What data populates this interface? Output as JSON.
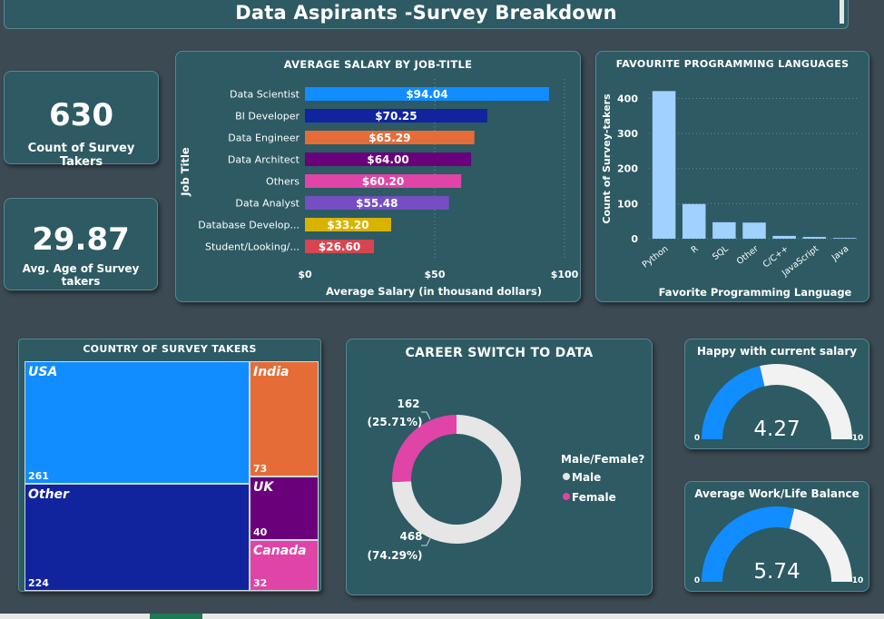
{
  "header": {
    "title": "Data Aspirants -Survey Breakdown"
  },
  "kpis": {
    "count": {
      "value": "630",
      "label": "Count of Survey Takers"
    },
    "age": {
      "value": "29.87",
      "label": "Avg. Age of Survey takers"
    }
  },
  "salary_chart": {
    "title": "AVERAGE SALARY BY JOB-TITLE",
    "xlabel": "Average Salary (in thousand dollars)",
    "ylabel": "Job Title",
    "ticks": [
      "$0",
      "$50",
      "$100"
    ]
  },
  "lang_chart": {
    "title": "FAVOURITE  PROGRAMMING  LANGUAGES",
    "xlabel": "Favorite Programming Language",
    "ylabel": "Count of Survey-takers",
    "ticks": [
      "0",
      "100",
      "200",
      "300",
      "400"
    ]
  },
  "country": {
    "title": "COUNTRY  OF  SURVEY  TAKERS",
    "cells": [
      {
        "name": "USA",
        "value": "261"
      },
      {
        "name": "Other",
        "value": "224"
      },
      {
        "name": "India",
        "value": "73"
      },
      {
        "name": "UK",
        "value": "40"
      },
      {
        "name": "Canada",
        "value": "32"
      }
    ]
  },
  "career": {
    "title": "CAREER  SWITCH  TO  DATA",
    "female": {
      "count": "162",
      "pct": "(25.71%)"
    },
    "male": {
      "count": "468",
      "pct": "(74.29%)"
    },
    "legend_title": "Male/Female?",
    "legend": [
      "Male",
      "Female"
    ]
  },
  "gauges": {
    "salary": {
      "title": "Happy with current salary",
      "value": "4.27",
      "min": "0",
      "max": "10"
    },
    "balance": {
      "title": "Average Work/Life Balance",
      "value": "5.74",
      "min": "0",
      "max": "10"
    }
  },
  "chart_data": [
    {
      "type": "bar",
      "orientation": "horizontal",
      "title": "AVERAGE SALARY BY JOB-TITLE",
      "xlabel": "Average Salary (in thousand dollars)",
      "ylabel": "Job Title",
      "xlim": [
        0,
        100
      ],
      "categories": [
        "Data Scientist",
        "BI Developer",
        "Data Engineer",
        "Data Architect",
        "Others",
        "Data Analyst",
        "Database Develop...",
        "Student/Looking/..."
      ],
      "values": [
        94.04,
        70.25,
        65.29,
        64.0,
        60.2,
        55.48,
        33.2,
        26.6
      ],
      "labels": [
        "$94.04",
        "$70.25",
        "$65.29",
        "$64.00",
        "$60.20",
        "$55.48",
        "$33.20",
        "$26.60"
      ],
      "colors": [
        "#118dff",
        "#12239e",
        "#e66c37",
        "#6b007b",
        "#e044a7",
        "#744ec2",
        "#d9b300",
        "#d64550"
      ]
    },
    {
      "type": "bar",
      "title": "FAVOURITE  PROGRAMMING  LANGUAGES",
      "xlabel": "Favorite Programming Language",
      "ylabel": "Count of Survey-takers",
      "ylim": [
        0,
        440
      ],
      "categories": [
        "Python",
        "R",
        "SQL",
        "Other",
        "C/C++",
        "JavaScript",
        "Java"
      ],
      "values": [
        421,
        99,
        47,
        46,
        8,
        5,
        2
      ],
      "color": "#a0d1ff"
    },
    {
      "type": "treemap",
      "title": "COUNTRY  OF  SURVEY  TAKERS",
      "categories": [
        "USA",
        "Other",
        "India",
        "UK",
        "Canada"
      ],
      "values": [
        261,
        224,
        73,
        40,
        32
      ],
      "colors": [
        "#118dff",
        "#12239e",
        "#e66c37",
        "#6b007b",
        "#e044a7"
      ]
    },
    {
      "type": "pie",
      "subtype": "donut",
      "title": "CAREER  SWITCH  TO  DATA",
      "legend_title": "Male/Female?",
      "categories": [
        "Male",
        "Female"
      ],
      "values": [
        468,
        162
      ],
      "colors": [
        "#e6e6e6",
        "#e044a7"
      ]
    },
    {
      "type": "gauge",
      "title": "Happy with current salary",
      "value": 4.27,
      "min": 0,
      "max": 10,
      "fill": "#118dff",
      "track": "#f2f2f2"
    },
    {
      "type": "gauge",
      "title": "Average Work/Life Balance",
      "value": 5.74,
      "min": 0,
      "max": 10,
      "fill": "#118dff",
      "track": "#f2f2f2"
    }
  ]
}
